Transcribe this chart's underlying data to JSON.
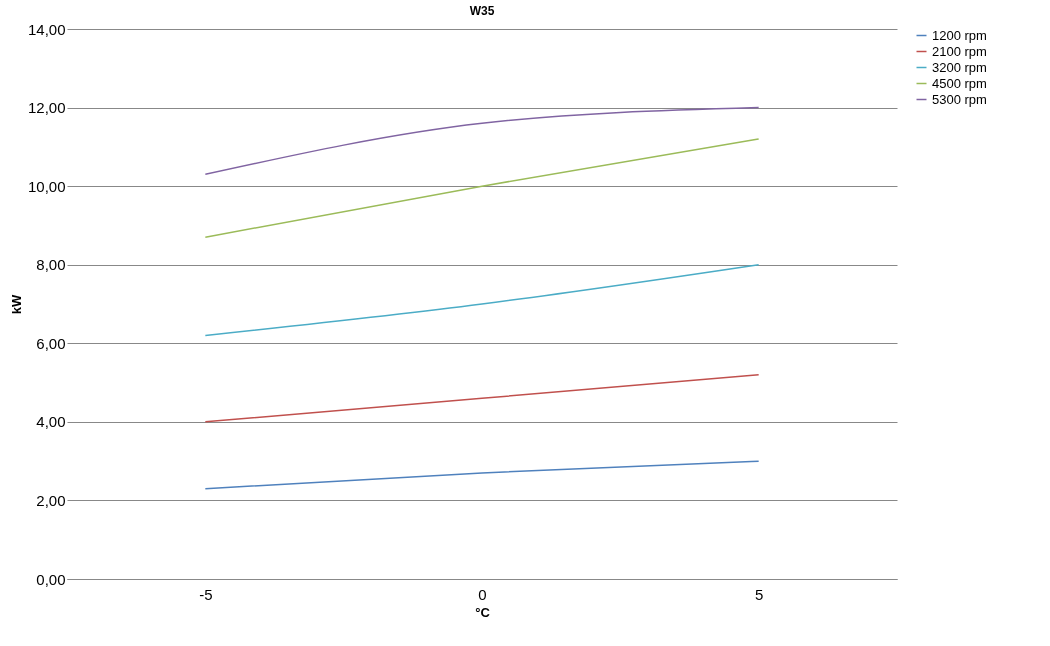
{
  "chart_data": {
    "type": "line",
    "title": "W35",
    "xlabel": "°C",
    "ylabel": "kW",
    "x": [
      -5,
      0,
      5
    ],
    "series": [
      {
        "name": "1200 rpm",
        "color": "#4f81bd",
        "values": [
          2.3,
          2.7,
          3.0
        ]
      },
      {
        "name": "2100 rpm",
        "color": "#c0504d",
        "values": [
          4.0,
          4.6,
          5.2
        ]
      },
      {
        "name": "3200 rpm",
        "color": "#4bacc6",
        "values": [
          6.2,
          7.0,
          8.0
        ]
      },
      {
        "name": "4500 rpm",
        "color": "#9bbb59",
        "values": [
          8.7,
          10.0,
          11.2
        ]
      },
      {
        "name": "5300 rpm",
        "color": "#8064a2",
        "values": [
          10.3,
          11.6,
          12.0
        ]
      }
    ],
    "xlim": [
      -7.5,
      7.5
    ],
    "xticks": [
      -5,
      0,
      5
    ],
    "ylim": [
      0,
      14
    ],
    "yticks": [
      {
        "value": 0,
        "label": "0,00"
      },
      {
        "value": 2,
        "label": "2,00"
      },
      {
        "value": 4,
        "label": "4,00"
      },
      {
        "value": 6,
        "label": "6,00"
      },
      {
        "value": 8,
        "label": "8,00"
      },
      {
        "value": 10,
        "label": "10,00"
      },
      {
        "value": 12,
        "label": "12,00"
      },
      {
        "value": 14,
        "label": "14,00"
      }
    ],
    "grid": "y",
    "legend": "right",
    "marker": "none",
    "line_style": "solid"
  }
}
